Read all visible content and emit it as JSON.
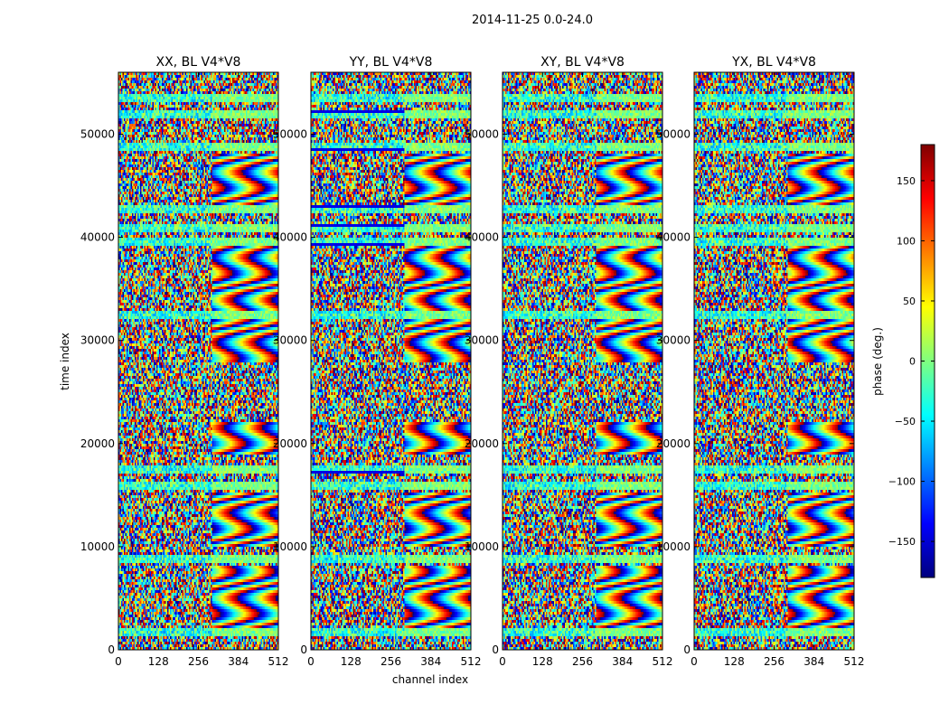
{
  "chart_data": {
    "type": "heatmap",
    "suptitle": "2014-11-25 0.0-24.0",
    "xlabel": "channel index",
    "ylabel": "time index",
    "xlim": [
      0,
      512
    ],
    "ylim": [
      0,
      56000
    ],
    "xticks": [
      0,
      128,
      256,
      384,
      512
    ],
    "yticks": [
      0,
      10000,
      20000,
      30000,
      40000,
      50000
    ],
    "panels": [
      {
        "title": "XX, BL V4*V8",
        "bias": 0.6
      },
      {
        "title": "YY, BL V4*V8",
        "bias": 0.85
      },
      {
        "title": "XY, BL V4*V8",
        "bias": 0.15
      },
      {
        "title": "YX, BL V4*V8",
        "bias": 0.2
      }
    ],
    "colorbar": {
      "label": "phase (deg.)",
      "range": [
        -180,
        180
      ],
      "ticks": [
        -150,
        -100,
        -50,
        0,
        50,
        100,
        150
      ],
      "tick_labels": [
        "−150",
        "−100",
        "−50",
        "0",
        "50",
        "100",
        "150"
      ],
      "colormap": [
        "#00007f",
        "#0000ff",
        "#007fff",
        "#00ffff",
        "#7fff7f",
        "#ffff00",
        "#ff7f00",
        "#ff0000",
        "#7f0000"
      ]
    },
    "flag_bands_time_index": [
      1600,
      8800,
      15800,
      17400,
      32400,
      39600,
      41000,
      42800,
      48800,
      52000,
      53600
    ],
    "fringe_bands_time_index": [
      [
        2000,
        8000
      ],
      [
        10000,
        15000
      ],
      [
        19000,
        22000
      ],
      [
        28000,
        32000
      ],
      [
        33000,
        39000
      ],
      [
        43000,
        48000
      ]
    ],
    "low_noise_start_channel": 256
  }
}
